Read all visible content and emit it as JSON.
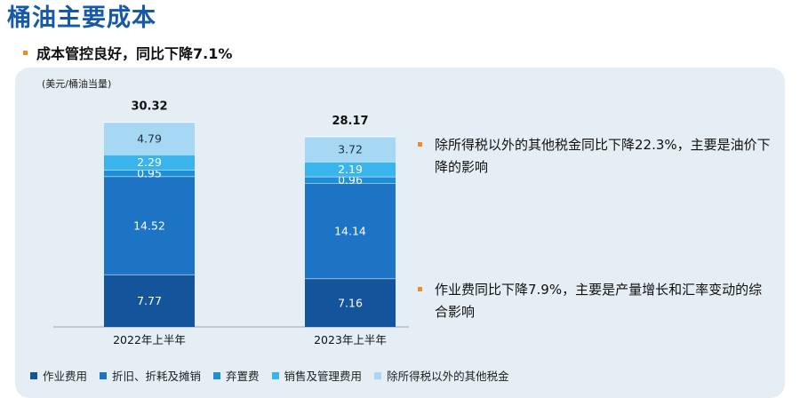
{
  "page": {
    "title": "桶油主要成本",
    "subtitle": "成本管控良好，同比下降7.1%"
  },
  "notes": [
    "除所得税以外的其他税金同比下降22.3%，主要是油价下降的影响",
    "作业费同比下降7.9%，主要是产量增长和汇率变动的综合影响"
  ],
  "chart_data": {
    "type": "bar",
    "stacked": true,
    "ylabel": "(美元/桶油当量)",
    "categories": [
      "2022年上半年",
      "2023年上半年"
    ],
    "totals": [
      "30.32",
      "28.17"
    ],
    "series": [
      {
        "name": "作业费用",
        "color": "#13549a",
        "values": [
          7.77,
          7.16
        ],
        "labels": [
          "7.77",
          "7.16"
        ]
      },
      {
        "name": "折旧、折耗及摊销",
        "color": "#1d74c4",
        "values": [
          14.52,
          14.14
        ],
        "labels": [
          "14.52",
          "14.14"
        ]
      },
      {
        "name": "弃置费",
        "color": "#1f8ed9",
        "values": [
          0.95,
          0.96
        ],
        "labels": [
          "0.95",
          "0.96"
        ]
      },
      {
        "name": "销售及管理费用",
        "color": "#3ab4ec",
        "values": [
          2.29,
          2.19
        ],
        "labels": [
          "2.29",
          "2.19"
        ]
      },
      {
        "name": "除所得税以外的其他税金",
        "color": "#a6d8f3",
        "values": [
          4.79,
          3.72
        ],
        "labels": [
          "4.79",
          "3.72"
        ]
      }
    ]
  }
}
